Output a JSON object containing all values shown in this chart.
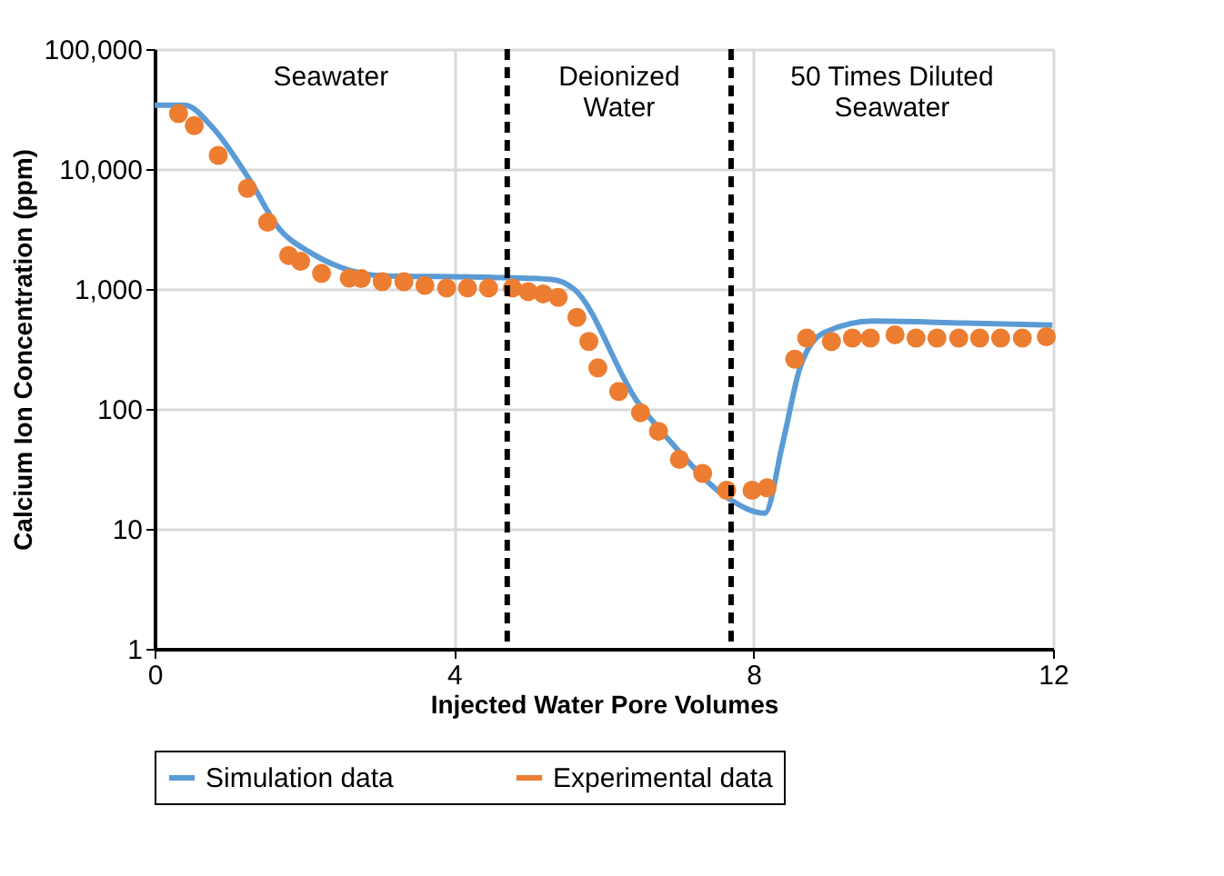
{
  "chart_data": {
    "type": "line",
    "xlabel": "Injected Water Pore Volumes",
    "ylabel": "Calcium Ion Concentration (ppm)",
    "log": "y",
    "xlim": [
      0,
      12
    ],
    "xticks": [
      0,
      4,
      8,
      12
    ],
    "ylim": [
      1,
      100000
    ],
    "yticks": [
      {
        "value": 1,
        "label": "1"
      },
      {
        "value": 10,
        "label": "10"
      },
      {
        "value": 100,
        "label": "100"
      },
      {
        "value": 1000,
        "label": "1,000"
      },
      {
        "value": 10000,
        "label": "10,000"
      },
      {
        "value": 100000,
        "label": "100,000"
      }
    ],
    "grid": true,
    "legend": "bottom",
    "series": [
      {
        "name": "Simulation data",
        "color": "#5b9bd5",
        "marker": "none",
        "x": [
          0,
          0.4,
          0.78,
          1.26,
          1.67,
          2.07,
          2.48,
          3.04,
          4.5,
          5.3,
          5.6,
          6.44,
          6.93,
          7.66,
          8.15,
          8.39,
          8.63,
          8.95,
          9.6,
          10.82,
          11.99
        ],
        "values": [
          34000,
          34000,
          22000,
          8300,
          3150,
          2030,
          1520,
          1290,
          1250,
          1200,
          1000,
          117,
          50,
          18,
          13.5,
          52,
          230,
          435,
          540,
          520,
          500
        ]
      },
      {
        "name": "Experimental data",
        "type": "scatter",
        "color": "#ed7d31",
        "marker": "circle",
        "x": [
          0.32,
          0.53,
          0.85,
          1.24,
          1.51,
          1.79,
          1.95,
          2.23,
          2.6,
          2.76,
          3.04,
          3.33,
          3.61,
          3.9,
          4.18,
          4.46,
          4.78,
          4.99,
          5.19,
          5.39,
          5.64,
          5.8,
          5.92,
          6.2,
          6.49,
          6.73,
          7.01,
          7.32,
          7.64,
          7.98,
          8.18,
          8.55,
          8.71,
          9.04,
          9.32,
          9.56,
          9.89,
          10.17,
          10.45,
          10.74,
          11.02,
          11.3,
          11.59,
          11.91
        ],
        "values": [
          29000,
          23000,
          13000,
          6900,
          3600,
          1900,
          1700,
          1350,
          1230,
          1220,
          1150,
          1150,
          1070,
          1020,
          1020,
          1020,
          1020,
          950,
          910,
          850,
          580,
          365,
          220,
          140,
          93,
          65,
          38,
          29,
          21,
          21,
          22,
          260,
          390,
          365,
          390,
          390,
          415,
          390,
          390,
          390,
          390,
          390,
          390,
          400
        ]
      }
    ],
    "ref_lines": [
      {
        "axis": "x",
        "value": 4.71,
        "color": "#000000",
        "line_style": "dashed"
      },
      {
        "axis": "x",
        "value": 7.7,
        "color": "#000000",
        "line_style": "dashed"
      }
    ],
    "annotations": [
      "Seawater",
      "Deionized\nWater",
      "50 Times Diluted\nSeawater"
    ]
  }
}
